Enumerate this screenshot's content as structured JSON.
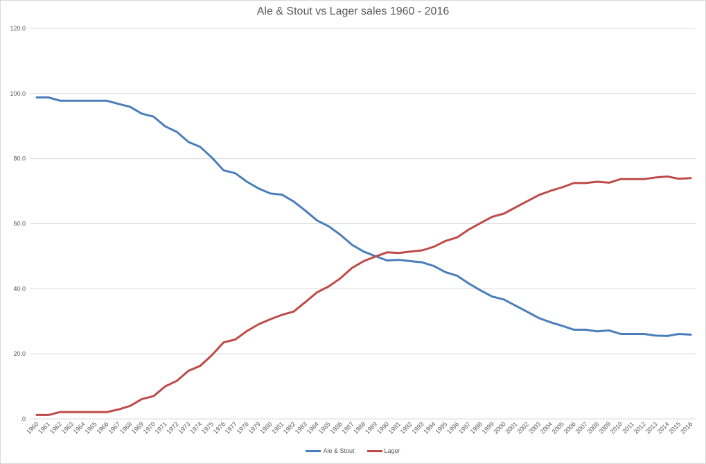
{
  "chart_data": {
    "type": "line",
    "title": "Ale & Stout vs Lager sales 1960 - 2016",
    "xlabel": "",
    "ylabel": "",
    "ylim": [
      0,
      120
    ],
    "yticks": [
      ".0",
      "20.0",
      "40.0",
      "60.0",
      "80.0",
      "100.0",
      "120.0"
    ],
    "grid": true,
    "legend_position": "bottom",
    "x": [
      1960,
      1961,
      1962,
      1963,
      1964,
      1965,
      1966,
      1967,
      1968,
      1969,
      1970,
      1971,
      1972,
      1973,
      1974,
      1975,
      1976,
      1977,
      1978,
      1979,
      1980,
      1981,
      1982,
      1983,
      1984,
      1985,
      1986,
      1987,
      1988,
      1989,
      1990,
      1991,
      1992,
      1993,
      1994,
      1995,
      1996,
      1997,
      1998,
      1999,
      2000,
      2001,
      2002,
      2003,
      2004,
      2005,
      2006,
      2007,
      2008,
      2009,
      2010,
      2011,
      2012,
      2013,
      2014,
      2015,
      2016
    ],
    "series": [
      {
        "name": "Ale & Stout",
        "color": "#4a7ebb",
        "values": [
          98.8,
          98.8,
          97.8,
          97.8,
          97.8,
          97.8,
          97.8,
          96.8,
          95.9,
          93.8,
          92.9,
          89.9,
          88.2,
          85.1,
          83.6,
          80.3,
          76.4,
          75.5,
          72.9,
          70.8,
          69.3,
          68.9,
          66.8,
          64.0,
          61.0,
          59.2,
          56.6,
          53.5,
          51.4,
          50.0,
          48.7,
          48.9,
          48.5,
          48.1,
          47.0,
          45.1,
          44.0,
          41.6,
          39.5,
          37.6,
          36.7,
          34.8,
          32.9,
          31.0,
          29.7,
          28.6,
          27.4,
          27.4,
          26.9,
          27.2,
          26.1,
          26.1,
          26.1,
          25.6,
          25.5,
          26.1,
          25.9
        ]
      },
      {
        "name": "Lager",
        "color": "#be4b48",
        "values": [
          1.2,
          1.2,
          2.1,
          2.1,
          2.1,
          2.1,
          2.1,
          2.9,
          4.0,
          6.1,
          7.0,
          10.0,
          11.7,
          14.8,
          16.3,
          19.6,
          23.5,
          24.4,
          27.0,
          29.1,
          30.6,
          32.0,
          33.0,
          35.9,
          38.9,
          40.7,
          43.2,
          46.4,
          48.5,
          49.9,
          51.2,
          51.0,
          51.4,
          51.8,
          52.9,
          54.7,
          55.8,
          58.2,
          60.2,
          62.1,
          63.1,
          65.0,
          66.9,
          68.8,
          70.1,
          71.2,
          72.5,
          72.5,
          72.9,
          72.6,
          73.7,
          73.7,
          73.7,
          74.2,
          74.5,
          73.8,
          74.0
        ]
      }
    ]
  },
  "legend": {
    "items": [
      {
        "label": "Ale & Stout",
        "color": "#4a7ebb"
      },
      {
        "label": "Lager",
        "color": "#be4b48"
      }
    ]
  }
}
